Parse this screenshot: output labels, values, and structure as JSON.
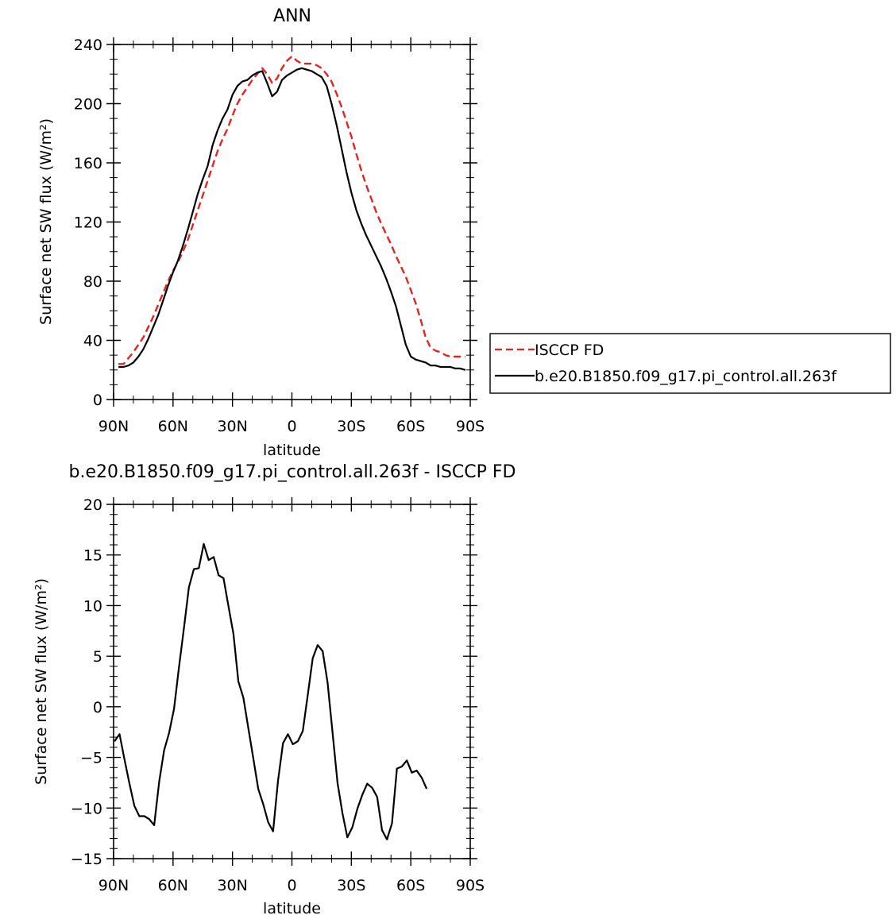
{
  "chart_data": [
    {
      "type": "line",
      "title": "ANN",
      "xlabel": "latitude",
      "ylabel": "Surface net SW flux (W/m²)",
      "xlim": [
        90,
        -90
      ],
      "ylim": [
        0,
        240
      ],
      "x_ticks": [
        {
          "value": 90,
          "label": "90N"
        },
        {
          "value": 60,
          "label": "60N"
        },
        {
          "value": 30,
          "label": "30N"
        },
        {
          "value": 0,
          "label": "0"
        },
        {
          "value": -30,
          "label": "30S"
        },
        {
          "value": -60,
          "label": "60S"
        },
        {
          "value": -90,
          "label": "90S"
        }
      ],
      "y_ticks": [
        {
          "value": 0,
          "label": "0"
        },
        {
          "value": 40,
          "label": "40"
        },
        {
          "value": 80,
          "label": "80"
        },
        {
          "value": 120,
          "label": "120"
        },
        {
          "value": 160,
          "label": "160"
        },
        {
          "value": 200,
          "label": "200"
        },
        {
          "value": 240,
          "label": "240"
        }
      ],
      "legend": {
        "placement": "right",
        "entries": [
          "ISCCP FD",
          "b.e20.B1850.f09_g17.pi_control.all.263f"
        ]
      },
      "series": [
        {
          "name": "ISCCP FD",
          "color": "#e8231e",
          "dash": "dashed",
          "points": [
            [
              87.5,
              24
            ],
            [
              85,
              24
            ],
            [
              82.5,
              28
            ],
            [
              80,
              32
            ],
            [
              77.5,
              37
            ],
            [
              75,
              42
            ],
            [
              72.5,
              49
            ],
            [
              70,
              56
            ],
            [
              67.5,
              64
            ],
            [
              65,
              72
            ],
            [
              62.5,
              80
            ],
            [
              60,
              87
            ],
            [
              57.5,
              93
            ],
            [
              55,
              100
            ],
            [
              52.5,
              108
            ],
            [
              50,
              118
            ],
            [
              47.5,
              128
            ],
            [
              45,
              138
            ],
            [
              42.5,
              148
            ],
            [
              40,
              158
            ],
            [
              37.5,
              168
            ],
            [
              35,
              176
            ],
            [
              32.5,
              183
            ],
            [
              30,
              192
            ],
            [
              27.5,
              200
            ],
            [
              25,
              206
            ],
            [
              22.5,
              211
            ],
            [
              20,
              216
            ],
            [
              17.5,
              220
            ],
            [
              15,
              224
            ],
            [
              12.5,
              220
            ],
            [
              10,
              214
            ],
            [
              7.5,
              217
            ],
            [
              5,
              224
            ],
            [
              2.5,
              229
            ],
            [
              0,
              232
            ],
            [
              -2.5,
              229
            ],
            [
              -5,
              227
            ],
            [
              -7.5,
              227
            ],
            [
              -10,
              227
            ],
            [
              -12.5,
              226
            ],
            [
              -15,
              224
            ],
            [
              -17.5,
              220
            ],
            [
              -20,
              215
            ],
            [
              -22.5,
              207
            ],
            [
              -25,
              198
            ],
            [
              -27.5,
              188
            ],
            [
              -30,
              178
            ],
            [
              -32.5,
              166
            ],
            [
              -35,
              155
            ],
            [
              -37.5,
              145
            ],
            [
              -40,
              136
            ],
            [
              -42.5,
              127
            ],
            [
              -45,
              119
            ],
            [
              -47.5,
              112
            ],
            [
              -50,
              105
            ],
            [
              -52.5,
              97
            ],
            [
              -55,
              90
            ],
            [
              -57.5,
              83
            ],
            [
              -60,
              74
            ],
            [
              -62.5,
              65
            ],
            [
              -65,
              54
            ],
            [
              -67.5,
              42
            ],
            [
              -70,
              35
            ],
            [
              -72.5,
              33
            ],
            [
              -75,
              32
            ],
            [
              -77.5,
              30
            ],
            [
              -80,
              29
            ],
            [
              -82.5,
              29
            ],
            [
              -85,
              29
            ],
            [
              -87.5,
              29
            ]
          ]
        },
        {
          "name": "b.e20.B1850.f09_g17.pi_control.all.263f",
          "color": "#000000",
          "dash": "solid",
          "points": [
            [
              87.5,
              22
            ],
            [
              85,
              22
            ],
            [
              82.5,
              23
            ],
            [
              80,
              25
            ],
            [
              77.5,
              29
            ],
            [
              75,
              34
            ],
            [
              72.5,
              41
            ],
            [
              70,
              49
            ],
            [
              67.5,
              57
            ],
            [
              65,
              67
            ],
            [
              62.5,
              77
            ],
            [
              60,
              86
            ],
            [
              57.5,
              94
            ],
            [
              55,
              104
            ],
            [
              52.5,
              115
            ],
            [
              50,
              127
            ],
            [
              47.5,
              139
            ],
            [
              45,
              149
            ],
            [
              42.5,
              158
            ],
            [
              40,
              172
            ],
            [
              37.5,
              182
            ],
            [
              35,
              190
            ],
            [
              32.5,
              196
            ],
            [
              30,
              206
            ],
            [
              27.5,
              212
            ],
            [
              25,
              215
            ],
            [
              22.5,
              216
            ],
            [
              20,
              219
            ],
            [
              17.5,
              221
            ],
            [
              15,
              222
            ],
            [
              12.5,
              214
            ],
            [
              10,
              205
            ],
            [
              7.5,
              208
            ],
            [
              5,
              216
            ],
            [
              2.5,
              219
            ],
            [
              0,
              221
            ],
            [
              -2.5,
              223
            ],
            [
              -5,
              224
            ],
            [
              -7.5,
              223
            ],
            [
              -10,
              222
            ],
            [
              -12.5,
              220
            ],
            [
              -15,
              218
            ],
            [
              -17.5,
              212
            ],
            [
              -20,
              200
            ],
            [
              -22.5,
              186
            ],
            [
              -25,
              170
            ],
            [
              -27.5,
              154
            ],
            [
              -30,
              140
            ],
            [
              -32.5,
              128
            ],
            [
              -35,
              119
            ],
            [
              -37.5,
              111
            ],
            [
              -40,
              104
            ],
            [
              -42.5,
              97
            ],
            [
              -45,
              90
            ],
            [
              -47.5,
              82
            ],
            [
              -50,
              73
            ],
            [
              -52.5,
              63
            ],
            [
              -55,
              50
            ],
            [
              -57.5,
              37
            ],
            [
              -60,
              29
            ],
            [
              -62.5,
              27
            ],
            [
              -65,
              26
            ],
            [
              -67.5,
              25
            ],
            [
              -70,
              23
            ],
            [
              -72.5,
              23
            ],
            [
              -75,
              22
            ],
            [
              -77.5,
              22
            ],
            [
              -80,
              22
            ],
            [
              -82.5,
              21
            ],
            [
              -85,
              21
            ],
            [
              -87.5,
              20
            ]
          ]
        }
      ]
    },
    {
      "type": "line",
      "title": "b.e20.B1850.f09_g17.pi_control.all.263f - ISCCP FD",
      "xlabel": "latitude",
      "ylabel": "Surface net SW flux (W/m²)",
      "xlim": [
        90,
        -90
      ],
      "ylim": [
        -15,
        20
      ],
      "x_ticks": [
        {
          "value": 90,
          "label": "90N"
        },
        {
          "value": 60,
          "label": "60N"
        },
        {
          "value": 30,
          "label": "30N"
        },
        {
          "value": 0,
          "label": "0"
        },
        {
          "value": -30,
          "label": "30S"
        },
        {
          "value": -60,
          "label": "60S"
        },
        {
          "value": -90,
          "label": "90S"
        }
      ],
      "y_ticks": [
        {
          "value": -15,
          "label": "−15"
        },
        {
          "value": -10,
          "label": "−10"
        },
        {
          "value": -5,
          "label": "−5"
        },
        {
          "value": 0,
          "label": "0"
        },
        {
          "value": 5,
          "label": "5"
        },
        {
          "value": 10,
          "label": "10"
        },
        {
          "value": 15,
          "label": "15"
        },
        {
          "value": 20,
          "label": "20"
        }
      ],
      "series": [
        {
          "color": "#000000",
          "dash": "solid",
          "points": [
            [
              89.5,
              -3.4
            ],
            [
              87,
              -2.7
            ],
            [
              84.5,
              -5.2
            ],
            [
              82,
              -7.6
            ],
            [
              79.5,
              -9.8
            ],
            [
              77,
              -10.8
            ],
            [
              74.5,
              -10.8
            ],
            [
              72,
              -11.1
            ],
            [
              69.5,
              -11.7
            ],
            [
              67,
              -7.4
            ],
            [
              64.5,
              -4.3
            ],
            [
              62,
              -2.6
            ],
            [
              59.5,
              -0.2
            ],
            [
              57,
              3.9
            ],
            [
              54.5,
              7.8
            ],
            [
              52,
              11.8
            ],
            [
              49.5,
              13.6
            ],
            [
              47,
              13.7
            ],
            [
              44.5,
              16.1
            ],
            [
              42,
              14.5
            ],
            [
              39.5,
              14.8
            ],
            [
              37,
              13
            ],
            [
              34.5,
              12.7
            ],
            [
              32,
              9.9
            ],
            [
              29.5,
              7.2
            ],
            [
              27,
              2.5
            ],
            [
              24.5,
              0.9
            ],
            [
              22,
              -2.1
            ],
            [
              19.5,
              -5.1
            ],
            [
              17,
              -8.1
            ],
            [
              14.5,
              -9.6
            ],
            [
              12,
              -11.4
            ],
            [
              9.5,
              -12.3
            ],
            [
              7,
              -7.3
            ],
            [
              4.5,
              -3.6
            ],
            [
              2,
              -2.7
            ],
            [
              -0.5,
              -3.7
            ],
            [
              -3,
              -3.4
            ],
            [
              -5.5,
              -2.4
            ],
            [
              -8,
              1.2
            ],
            [
              -10.5,
              4.8
            ],
            [
              -13,
              6.1
            ],
            [
              -15.5,
              5.5
            ],
            [
              -18,
              2.4
            ],
            [
              -20.5,
              -2.5
            ],
            [
              -23,
              -7.5
            ],
            [
              -25.5,
              -10.5
            ],
            [
              -28,
              -12.9
            ],
            [
              -30.5,
              -11.9
            ],
            [
              -33,
              -10.1
            ],
            [
              -35.5,
              -8.7
            ],
            [
              -38,
              -7.6
            ],
            [
              -40.5,
              -8
            ],
            [
              -43,
              -8.9
            ],
            [
              -45.5,
              -12.2
            ],
            [
              -48,
              -13.1
            ],
            [
              -50.5,
              -11.5
            ],
            [
              -53,
              -6.1
            ],
            [
              -55.5,
              -5.9
            ],
            [
              -58,
              -5.3
            ],
            [
              -60.5,
              -6.5
            ],
            [
              -63,
              -6.3
            ],
            [
              -65.5,
              -7
            ],
            [
              -68,
              -8.1
            ]
          ]
        }
      ]
    }
  ]
}
